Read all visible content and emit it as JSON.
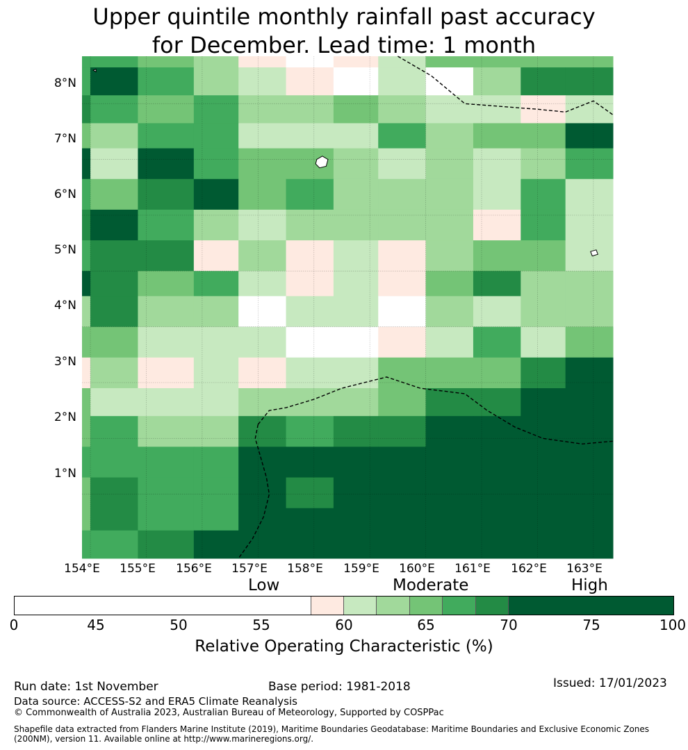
{
  "title_line1": "Upper quintile monthly rainfall past accuracy",
  "title_line2": "for December. Lead time: 1 month",
  "lat_labels": [
    "8°N",
    "7°N",
    "6°N",
    "5°N",
    "4°N",
    "3°N",
    "2°N",
    "1°N"
  ],
  "lon_labels": [
    "154°E",
    "155°E",
    "156°E",
    "157°E",
    "158°E",
    "159°E",
    "160°E",
    "161°E",
    "162°E",
    "163°E"
  ],
  "levels": {
    "low": "Low",
    "moderate": "Moderate",
    "high": "High"
  },
  "colorbar": {
    "ticks": [
      "0",
      "45",
      "50",
      "55",
      "60",
      "65",
      "70",
      "75",
      "100"
    ],
    "tick_values": [
      0,
      45,
      50,
      55,
      60,
      65,
      70,
      75,
      100
    ],
    "colors": [
      "#ffffff",
      "#feeae1",
      "#c7e9c0",
      "#a1d99b",
      "#74c476",
      "#41ab5d",
      "#238b45",
      "#005a32"
    ],
    "label": "Relative Operating Characteristic (%)"
  },
  "footer": {
    "run_date": "Run date: 1st November",
    "base_period": "Base period: 1981-2018",
    "issued": "Issued: 17/01/2023",
    "data_source": "Data source: ACCESS-S2 and ERA5 Climate Reanalysis",
    "copyright": "© Commonwealth of Australia 2023, Australian Bureau of Meteorology, Supported by COSPPac",
    "shapefile_line1": "Shapefile data extracted from Flanders Marine Institute (2019), Maritime Boundaries Geodatabase: Maritime Boundaries and Exclusive Economic Zones",
    "shapefile_line2": "(200NM), version 11. Available online at http://www.marineregions.org/."
  },
  "map": {
    "lon_min": 153.85,
    "lon_max": 163.35,
    "lat_min": -0.15,
    "lat_max": 8.85,
    "lon_edges": [
      153.85,
      154.0,
      154.85,
      155.85,
      156.65,
      157.5,
      158.35,
      159.15,
      160.0,
      160.85,
      161.7,
      162.5,
      163.35
    ],
    "lat_edges": [
      8.85,
      8.65,
      8.15,
      7.65,
      7.2,
      6.65,
      6.1,
      5.55,
      5.0,
      4.55,
      4.0,
      3.45,
      2.9,
      2.4,
      1.85,
      1.3,
      0.75,
      0.35,
      -0.15
    ],
    "grid": [
      [
        5,
        5,
        4,
        3,
        1,
        0,
        1,
        2,
        4,
        4,
        4,
        4
      ],
      [
        5,
        7,
        5,
        3,
        2,
        1,
        0,
        2,
        0,
        3,
        6,
        6
      ],
      [
        6,
        5,
        4,
        5,
        3,
        3,
        4,
        3,
        2,
        2,
        1,
        2
      ],
      [
        4,
        3,
        5,
        5,
        2,
        2,
        2,
        5,
        3,
        4,
        4,
        7
      ],
      [
        7,
        2,
        7,
        5,
        4,
        4,
        3,
        2,
        3,
        2,
        3,
        5
      ],
      [
        5,
        4,
        6,
        7,
        4,
        5,
        3,
        3,
        3,
        2,
        5,
        2
      ],
      [
        6,
        7,
        5,
        3,
        2,
        3,
        3,
        3,
        3,
        1,
        5,
        2
      ],
      [
        5,
        6,
        6,
        1,
        3,
        1,
        2,
        1,
        3,
        4,
        4,
        2
      ],
      [
        7,
        6,
        4,
        5,
        2,
        1,
        2,
        1,
        4,
        6,
        3,
        3
      ],
      [
        3,
        6,
        3,
        3,
        0,
        2,
        2,
        0,
        3,
        2,
        3,
        3
      ],
      [
        4,
        4,
        2,
        2,
        2,
        0,
        0,
        1,
        2,
        5,
        2,
        4
      ],
      [
        1,
        3,
        1,
        2,
        1,
        2,
        2,
        4,
        4,
        4,
        6,
        7
      ],
      [
        4,
        2,
        2,
        2,
        3,
        3,
        3,
        4,
        6,
        6,
        7,
        7
      ],
      [
        4,
        5,
        3,
        3,
        6,
        5,
        6,
        6,
        7,
        7,
        7,
        7
      ],
      [
        5,
        5,
        5,
        5,
        7,
        7,
        7,
        7,
        7,
        7,
        7,
        7
      ],
      [
        4,
        6,
        5,
        5,
        7,
        6,
        7,
        7,
        7,
        7,
        7,
        7
      ],
      [
        4,
        6,
        5,
        5,
        7,
        7,
        7,
        7,
        7,
        7,
        7,
        7
      ],
      [
        5,
        5,
        6,
        7,
        7,
        7,
        7,
        7,
        7,
        7,
        7,
        7
      ]
    ],
    "eez_lines": [
      [
        [
          159.5,
          8.85
        ],
        [
          160.1,
          8.5
        ],
        [
          160.7,
          8.0
        ],
        [
          162.0,
          7.9
        ],
        [
          162.5,
          7.85
        ],
        [
          163.0,
          8.05
        ],
        [
          163.35,
          7.8
        ]
      ],
      [
        [
          157.0,
          2.25
        ],
        [
          157.2,
          2.5
        ],
        [
          157.5,
          2.55
        ],
        [
          158.0,
          2.7
        ],
        [
          158.5,
          2.9
        ],
        [
          159.3,
          3.1
        ],
        [
          159.9,
          2.9
        ],
        [
          160.7,
          2.8
        ],
        [
          161.1,
          2.5
        ],
        [
          161.6,
          2.2
        ],
        [
          162.1,
          2.0
        ],
        [
          162.8,
          1.9
        ],
        [
          163.35,
          1.95
        ]
      ],
      [
        [
          157.0,
          2.25
        ],
        [
          156.95,
          2.0
        ],
        [
          157.15,
          1.3
        ],
        [
          157.2,
          1.0
        ],
        [
          157.1,
          0.6
        ],
        [
          156.9,
          0.2
        ],
        [
          156.65,
          -0.15
        ]
      ]
    ],
    "islands": [
      [
        [
          158.05,
          7.0
        ],
        [
          158.15,
          7.06
        ],
        [
          158.25,
          7.0
        ],
        [
          158.22,
          6.88
        ],
        [
          158.1,
          6.85
        ],
        [
          158.03,
          6.92
        ]
      ],
      [
        [
          162.95,
          5.35
        ],
        [
          163.05,
          5.38
        ],
        [
          163.08,
          5.3
        ],
        [
          162.98,
          5.27
        ]
      ],
      [
        [
          154.05,
          8.6
        ],
        [
          154.1,
          8.62
        ],
        [
          154.1,
          8.57
        ]
      ]
    ]
  }
}
